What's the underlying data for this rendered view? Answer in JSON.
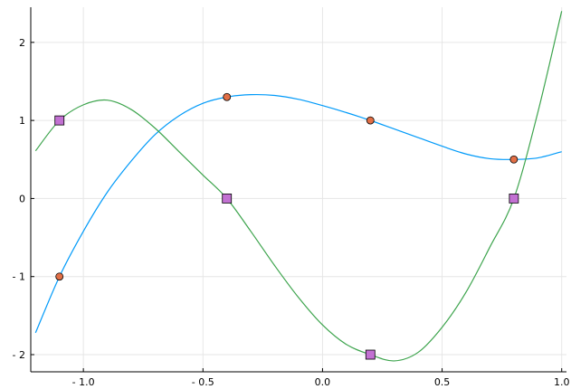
{
  "chart_data": {
    "type": "line",
    "title": "",
    "xlabel": "",
    "ylabel": "",
    "xlim": [
      -1.22,
      1.02
    ],
    "ylim": [
      -2.22,
      2.45
    ],
    "grid": true,
    "legend": "none",
    "x_ticks": [
      {
        "value": -1.0,
        "label": "- 1.0"
      },
      {
        "value": -0.5,
        "label": "- 0.5"
      },
      {
        "value": 0.0,
        "label": "0.0"
      },
      {
        "value": 0.5,
        "label": "0.5"
      },
      {
        "value": 1.0,
        "label": "1.0"
      }
    ],
    "y_ticks": [
      {
        "value": 2,
        "label": "2"
      },
      {
        "value": 1,
        "label": "1"
      },
      {
        "value": 0,
        "label": "0"
      },
      {
        "value": -1,
        "label": "- 1"
      },
      {
        "value": -2,
        "label": "- 2"
      }
    ],
    "series": [
      {
        "kind": "line",
        "color": "#009af9",
        "x": [
          -1.2,
          -1.1,
          -1.0,
          -0.9,
          -0.8,
          -0.7,
          -0.6,
          -0.5,
          -0.4,
          -0.3,
          -0.2,
          -0.1,
          0.0,
          0.1,
          0.2,
          0.3,
          0.4,
          0.5,
          0.6,
          0.7,
          0.8,
          0.9,
          1.0
        ],
        "y": [
          -1.72,
          -1.0,
          -0.42,
          0.08,
          0.48,
          0.82,
          1.06,
          1.22,
          1.3,
          1.33,
          1.32,
          1.27,
          1.19,
          1.1,
          1.0,
          0.89,
          0.78,
          0.67,
          0.57,
          0.51,
          0.5,
          0.52,
          0.6
        ]
      },
      {
        "kind": "line",
        "color": "#3da44d",
        "x": [
          -1.2,
          -1.1,
          -1.0,
          -0.9,
          -0.8,
          -0.7,
          -0.6,
          -0.5,
          -0.4,
          -0.3,
          -0.2,
          -0.1,
          0.0,
          0.1,
          0.2,
          0.3,
          0.4,
          0.5,
          0.6,
          0.7,
          0.8,
          0.9,
          1.0
        ],
        "y": [
          0.61,
          1.0,
          1.2,
          1.26,
          1.14,
          0.9,
          0.6,
          0.3,
          0.0,
          -0.42,
          -0.86,
          -1.27,
          -1.62,
          -1.87,
          -2.0,
          -2.08,
          -1.97,
          -1.65,
          -1.2,
          -0.62,
          0.0,
          1.1,
          2.4
        ]
      },
      {
        "kind": "scatter",
        "marker": "circle",
        "color": "#e26f46",
        "x": [
          -1.1,
          -0.4,
          0.2,
          0.8
        ],
        "y": [
          -1.0,
          1.3,
          1.0,
          0.5
        ]
      },
      {
        "kind": "scatter",
        "marker": "square",
        "color": "#c271d2",
        "x": [
          -1.1,
          -0.4,
          0.2,
          0.8
        ],
        "y": [
          1.0,
          0.0,
          -2.0,
          0.0
        ]
      }
    ]
  }
}
